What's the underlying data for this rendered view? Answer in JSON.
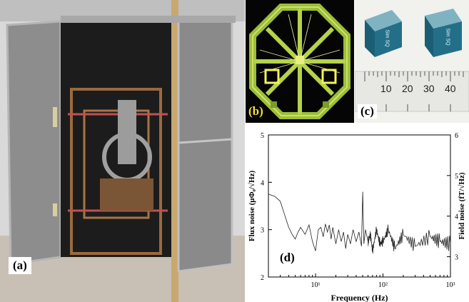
{
  "panels": {
    "a": {
      "label": "(a)"
    },
    "b": {
      "label": "(b)"
    },
    "c": {
      "label": "(c)",
      "ruler_numbers": [
        "10",
        "20",
        "30",
        "40"
      ],
      "chip_text": "Sim SQ"
    },
    "d": {
      "label": "(d)"
    }
  },
  "chart_data": {
    "type": "line",
    "xlabel": "Frequency (Hz)",
    "ylabel": "Flux noise (μΦ₀/√Hz)",
    "y2label": "Field noise (fT/√Hz)",
    "x_scale": "log",
    "xlim": [
      2,
      1000
    ],
    "ylim": [
      2,
      5
    ],
    "y2lim": [
      2.5,
      6
    ],
    "x_ticks": [
      {
        "value": 10,
        "label": "10¹"
      },
      {
        "value": 100,
        "label": "10²"
      },
      {
        "value": 1000,
        "label": "10³"
      }
    ],
    "y_ticks": [
      2,
      3,
      4,
      5
    ],
    "y2_ticks": [
      3,
      4,
      5,
      6
    ],
    "series": [
      {
        "x": [
          2,
          2.5,
          3,
          3.5,
          4,
          4.5,
          5,
          5.5,
          6,
          7,
          8,
          9,
          10,
          11,
          12,
          13,
          14,
          15,
          16,
          17,
          18,
          20,
          22,
          24,
          26,
          28,
          30,
          33,
          36,
          40,
          44,
          48,
          50,
          52,
          55,
          60,
          65,
          70,
          80,
          90,
          100,
          120,
          150,
          200,
          300,
          500,
          700,
          1000
        ],
        "y": [
          3.75,
          3.7,
          3.6,
          3.3,
          3.05,
          2.9,
          2.8,
          2.95,
          3.05,
          2.9,
          3.1,
          2.75,
          2.55,
          3.0,
          3.05,
          2.85,
          3.12,
          2.95,
          3.1,
          2.8,
          3.05,
          2.7,
          3.0,
          2.75,
          2.95,
          2.6,
          2.9,
          2.7,
          3.0,
          2.75,
          2.95,
          2.65,
          3.8,
          2.7,
          3.0,
          2.75,
          2.9,
          2.55,
          3.0,
          2.7,
          2.75,
          3.0,
          2.6,
          2.9,
          2.65,
          2.85,
          2.75,
          2.7
        ]
      }
    ]
  }
}
